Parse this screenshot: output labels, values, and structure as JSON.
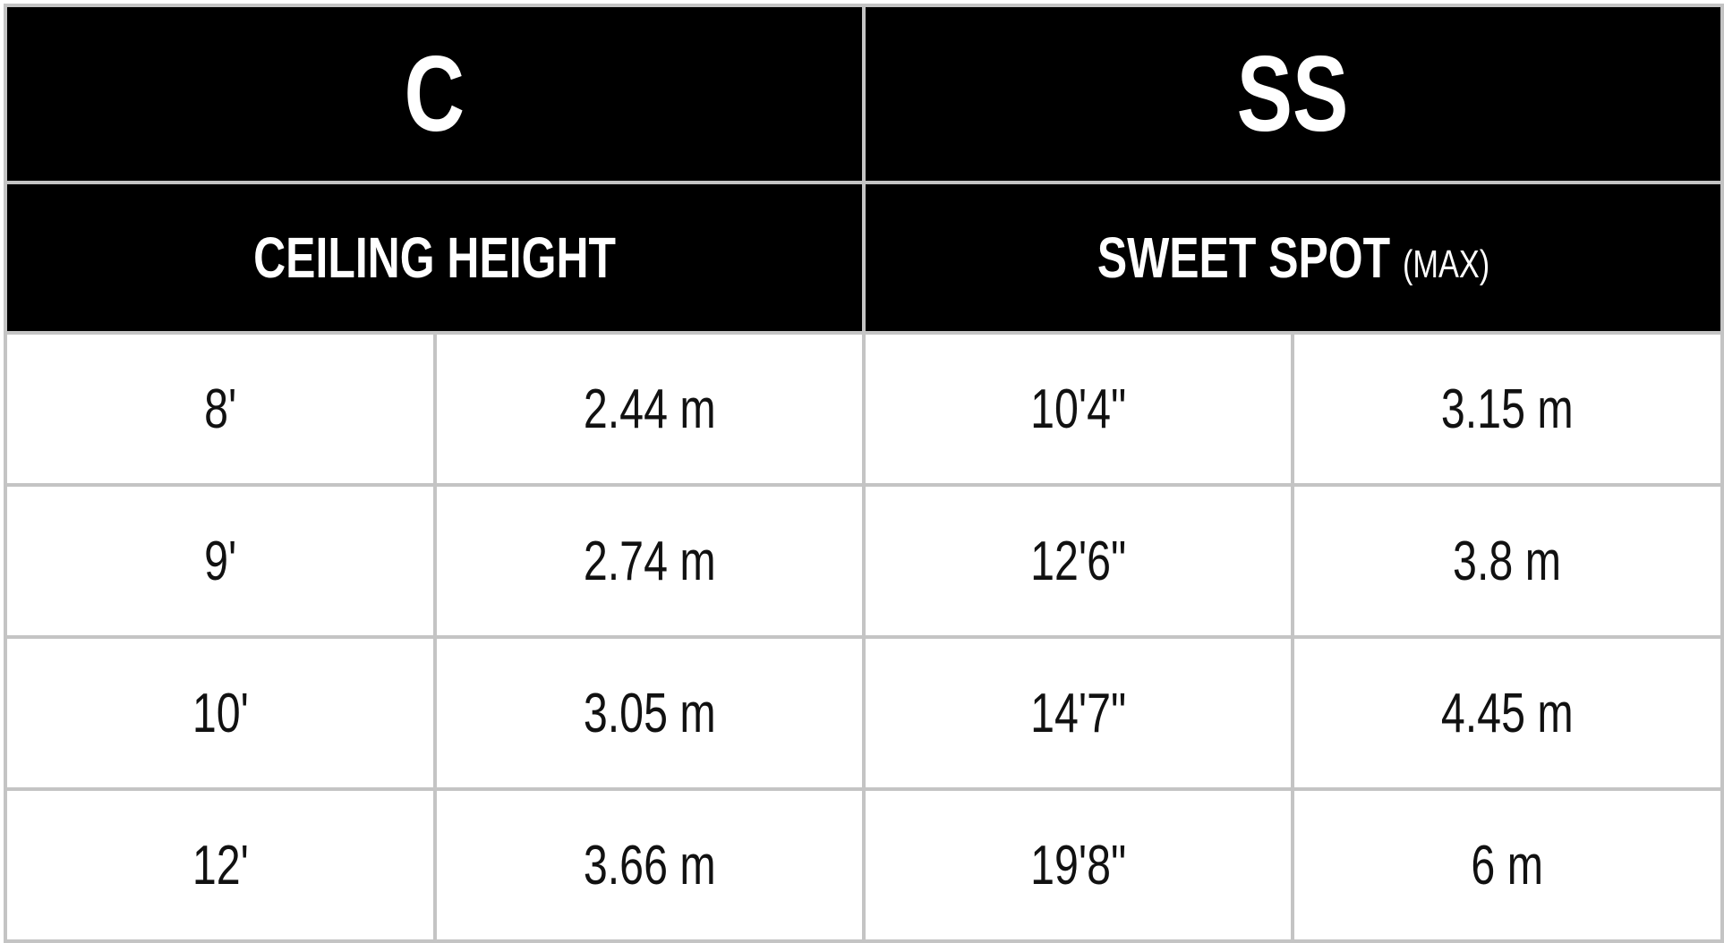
{
  "headers": {
    "left_code": "C",
    "right_code": "SS",
    "left_label": "CEILING HEIGHT",
    "right_label": "SWEET SPOT",
    "right_label_suffix": "(MAX)"
  },
  "rows": [
    {
      "ceiling_ft": "8'",
      "ceiling_m": "2.44 m",
      "sweet_ft": "10'4\"",
      "sweet_m": "3.15 m"
    },
    {
      "ceiling_ft": "9'",
      "ceiling_m": "2.74 m",
      "sweet_ft": "12'6\"",
      "sweet_m": "3.8 m"
    },
    {
      "ceiling_ft": "10'",
      "ceiling_m": "3.05 m",
      "sweet_ft": "14'7\"",
      "sweet_m": "4.45 m"
    },
    {
      "ceiling_ft": "12'",
      "ceiling_m": "3.66 m",
      "sweet_ft": "19'8\"",
      "sweet_m": "6 m"
    }
  ]
}
